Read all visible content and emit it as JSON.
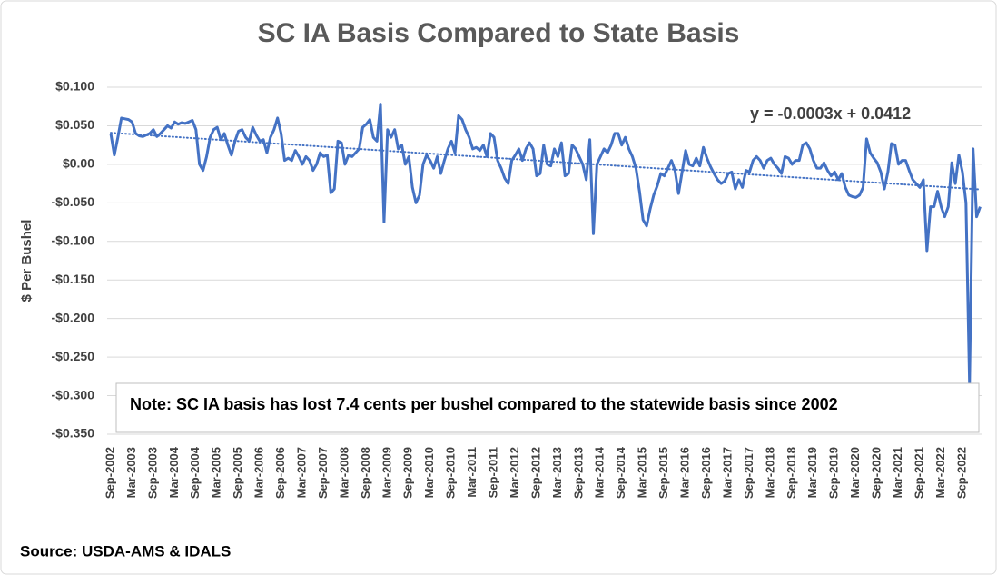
{
  "chart_data": {
    "type": "line",
    "title": "SC IA Basis Compared to State Basis",
    "y_label": "$ Per Bushel",
    "note": "Note: SC IA basis has lost 7.4 cents per bushel compared to the statewide basis since 2002",
    "source": "Source: USDA-AMS & IDALS",
    "trend": {
      "label": "y = -0.0003x + 0.0412",
      "slope": -0.0003,
      "intercept": 0.0412
    },
    "categories": [
      "Sep-2002",
      null,
      null,
      null,
      null,
      null,
      "Mar-2003",
      null,
      null,
      null,
      null,
      null,
      "Sep-2003",
      null,
      null,
      null,
      null,
      null,
      "Mar-2004",
      null,
      null,
      null,
      null,
      null,
      "Sep-2004",
      null,
      null,
      null,
      null,
      null,
      "Mar-2005",
      null,
      null,
      null,
      null,
      null,
      "Sep-2005",
      null,
      null,
      null,
      null,
      null,
      "Mar-2006",
      null,
      null,
      null,
      null,
      null,
      "Sep-2006",
      null,
      null,
      null,
      null,
      null,
      "Mar-2007",
      null,
      null,
      null,
      null,
      null,
      "Sep-2007",
      null,
      null,
      null,
      null,
      null,
      "Mar-2008",
      null,
      null,
      null,
      null,
      null,
      "Sep-2008",
      null,
      null,
      null,
      null,
      null,
      "Mar-2009",
      null,
      null,
      null,
      null,
      null,
      "Sep-2009",
      null,
      null,
      null,
      null,
      null,
      "Mar-2010",
      null,
      null,
      null,
      null,
      null,
      "Sep-2010",
      null,
      null,
      null,
      null,
      null,
      "Mar-2011",
      null,
      null,
      null,
      null,
      null,
      "Sep-2011",
      null,
      null,
      null,
      null,
      null,
      "Mar-2012",
      null,
      null,
      null,
      null,
      null,
      "Sep-2012",
      null,
      null,
      null,
      null,
      null,
      "Mar-2013",
      null,
      null,
      null,
      null,
      null,
      "Sep-2013",
      null,
      null,
      null,
      null,
      null,
      "Mar-2014",
      null,
      null,
      null,
      null,
      null,
      "Sep-2014",
      null,
      null,
      null,
      null,
      null,
      "Mar-2015",
      null,
      null,
      null,
      null,
      null,
      "Sep-2015",
      null,
      null,
      null,
      null,
      null,
      "Mar-2016",
      null,
      null,
      null,
      null,
      null,
      "Sep-2016",
      null,
      null,
      null,
      null,
      null,
      "Mar-2017",
      null,
      null,
      null,
      null,
      null,
      "Sep-2017",
      null,
      null,
      null,
      null,
      null,
      "Mar-2018",
      null,
      null,
      null,
      null,
      null,
      "Sep-2018",
      null,
      null,
      null,
      null,
      null,
      "Mar-2019",
      null,
      null,
      null,
      null,
      null,
      "Sep-2019",
      null,
      null,
      null,
      null,
      null,
      "Mar-2020",
      null,
      null,
      null,
      null,
      null,
      "Sep-2020",
      null,
      null,
      null,
      null,
      null,
      "Mar-2021",
      null,
      null,
      null,
      null,
      null,
      "Sep-2021",
      null,
      null,
      null,
      null,
      null,
      "Mar-2022",
      null,
      null,
      null,
      null,
      null,
      "Sep-2022",
      null,
      null,
      null,
      null,
      null
    ],
    "series": [
      {
        "color": "#4472c4",
        "values": [
          0.04,
          0.012,
          0.035,
          0.06,
          0.059,
          0.058,
          0.055,
          0.04,
          0.037,
          0.036,
          0.038,
          0.04,
          0.045,
          0.036,
          0.04,
          0.045,
          0.05,
          0.047,
          0.055,
          0.052,
          0.054,
          0.053,
          0.055,
          0.057,
          0.045,
          0.0,
          -0.008,
          0.01,
          0.035,
          0.045,
          0.048,
          0.032,
          0.04,
          0.025,
          0.012,
          0.03,
          0.043,
          0.045,
          0.035,
          0.03,
          0.048,
          0.038,
          0.03,
          0.032,
          0.015,
          0.035,
          0.045,
          0.06,
          0.04,
          0.005,
          0.008,
          0.005,
          0.018,
          0.01,
          0.0,
          0.01,
          0.005,
          -0.008,
          0.0,
          0.015,
          0.01,
          0.012,
          -0.037,
          -0.032,
          0.03,
          0.028,
          0.0,
          0.012,
          0.01,
          0.015,
          0.02,
          0.048,
          0.052,
          0.058,
          0.035,
          0.03,
          0.078,
          -0.075,
          0.045,
          0.035,
          0.045,
          0.02,
          0.025,
          0.0,
          0.01,
          -0.03,
          -0.05,
          -0.04,
          0.0,
          0.012,
          0.005,
          -0.005,
          0.01,
          -0.012,
          0.005,
          0.02,
          0.03,
          0.015,
          0.063,
          0.058,
          0.045,
          0.035,
          0.02,
          0.022,
          0.018,
          0.025,
          0.01,
          0.04,
          0.035,
          0.005,
          -0.005,
          -0.018,
          -0.025,
          0.005,
          0.012,
          0.02,
          0.005,
          0.02,
          0.028,
          0.02,
          -0.015,
          -0.012,
          0.025,
          0.0,
          -0.002,
          0.02,
          0.01,
          0.028,
          -0.015,
          -0.012,
          0.025,
          0.02,
          0.01,
          0.0,
          -0.02,
          0.032,
          -0.09,
          0.0,
          0.01,
          0.02,
          0.015,
          0.025,
          0.04,
          0.04,
          0.025,
          0.035,
          0.02,
          0.01,
          -0.005,
          -0.035,
          -0.072,
          -0.08,
          -0.058,
          -0.04,
          -0.028,
          -0.012,
          -0.015,
          -0.005,
          0.005,
          -0.008,
          -0.038,
          -0.01,
          0.018,
          0.0,
          -0.002,
          0.008,
          -0.002,
          0.022,
          0.008,
          -0.003,
          -0.012,
          -0.02,
          -0.025,
          -0.022,
          -0.012,
          -0.01,
          -0.032,
          -0.02,
          -0.03,
          -0.008,
          -0.01,
          0.005,
          0.01,
          0.005,
          -0.005,
          0.005,
          0.008,
          0.0,
          -0.005,
          -0.012,
          0.01,
          0.008,
          0.0,
          0.005,
          0.005,
          0.025,
          0.028,
          0.02,
          0.005,
          -0.005,
          -0.005,
          0.002,
          -0.008,
          -0.015,
          -0.01,
          -0.02,
          -0.012,
          -0.03,
          -0.04,
          -0.042,
          -0.043,
          -0.04,
          -0.03,
          0.033,
          0.015,
          0.008,
          0.002,
          -0.01,
          -0.032,
          -0.01,
          0.027,
          0.025,
          0.0,
          0.005,
          0.005,
          -0.008,
          -0.02,
          -0.025,
          -0.03,
          -0.02,
          -0.112,
          -0.055,
          -0.055,
          -0.035,
          -0.055,
          -0.068,
          -0.055,
          0.002,
          -0.025,
          0.012,
          -0.01,
          -0.05,
          -0.285,
          0.02,
          -0.068,
          -0.055
        ]
      }
    ],
    "ylim": [
      -0.35,
      0.1
    ],
    "yticks": [
      {
        "value": 0.1,
        "label": "$0.100"
      },
      {
        "value": 0.05,
        "label": "$0.050"
      },
      {
        "value": 0,
        "label": "$0.00"
      },
      {
        "value": -0.05,
        "label": "-$0.050"
      },
      {
        "value": -0.1,
        "label": "-$0.100"
      },
      {
        "value": -0.15,
        "label": "-$0.150"
      },
      {
        "value": -0.2,
        "label": "-$0.200"
      },
      {
        "value": -0.25,
        "label": "-$0.250"
      },
      {
        "value": -0.3,
        "label": "-$0.300"
      },
      {
        "value": -0.35,
        "label": "-$0.350"
      }
    ],
    "grid": true
  }
}
